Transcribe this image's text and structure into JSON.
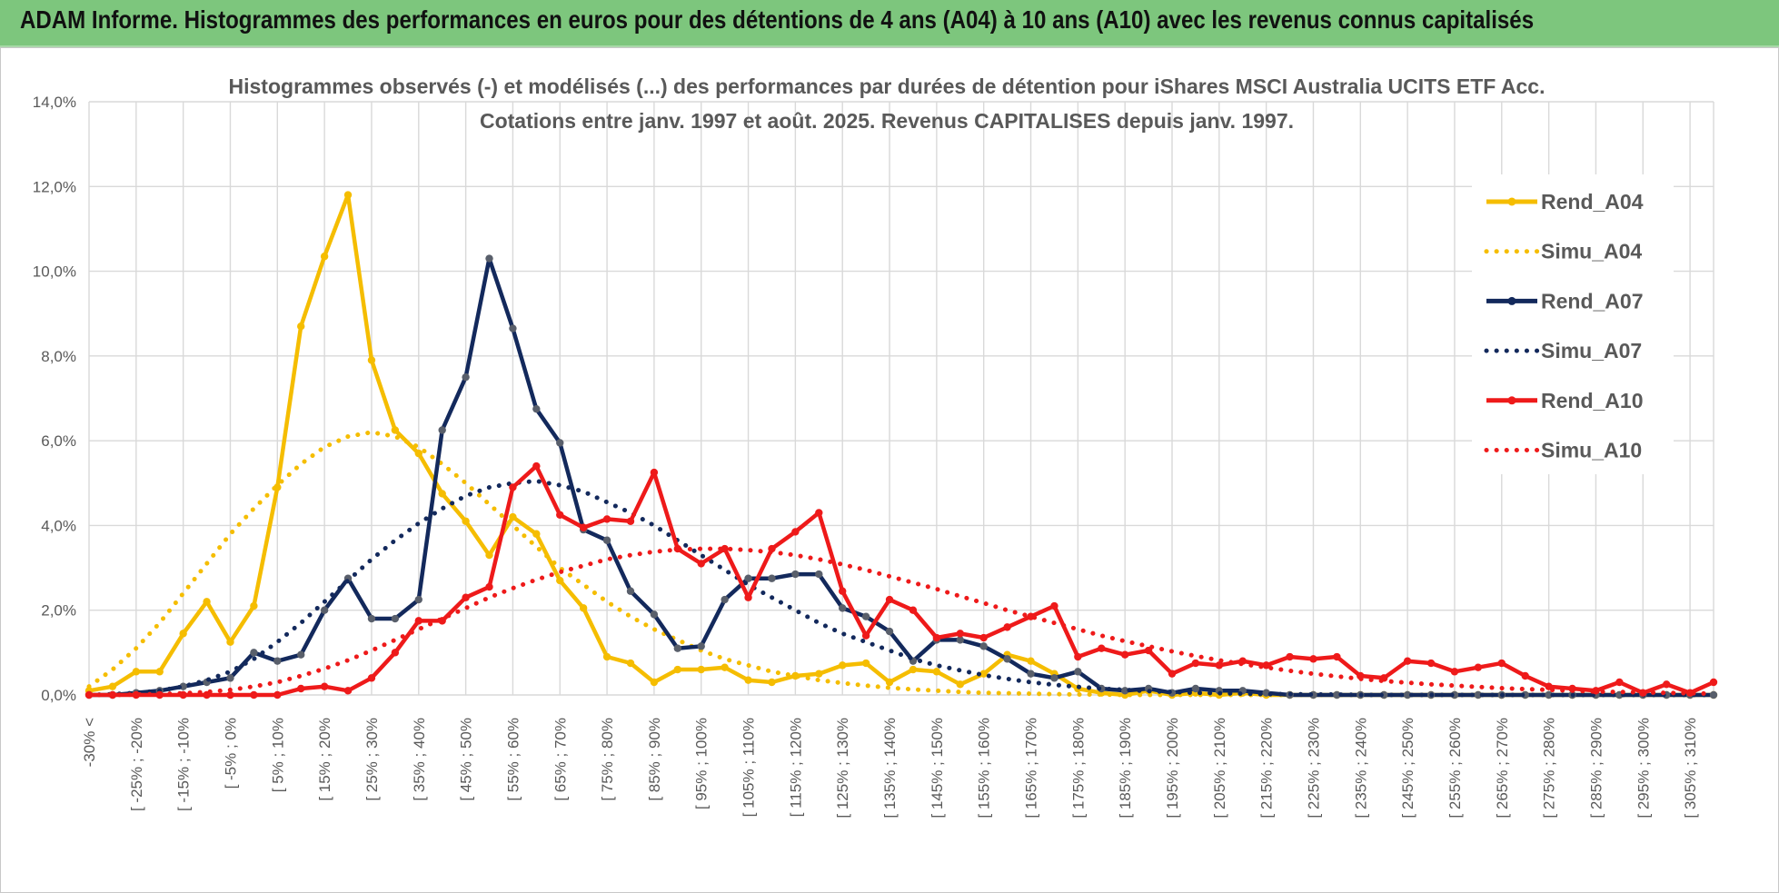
{
  "banner": {
    "title": "ADAM Informe. Histogrammes des performances en euros pour des détentions de 4 ans (A04) à 10 ans (A10) avec les revenus connus capitalisés"
  },
  "colors": {
    "banner_bg": "#7dc67d",
    "A04": "#f5bd00",
    "A07": "#13295c",
    "A07_marker": "#595f6b",
    "A10": "#ee1a1a"
  },
  "chart_data": {
    "type": "line",
    "title": [
      "Histogrammes observés (-) et modélisés (...) des performances par durées de détention pour iShares MSCI Australia UCITS ETF Acc.",
      "Cotations entre janv. 1997 et août. 2025. Revenus CAPITALISES depuis janv. 1997."
    ],
    "xlabel": "",
    "ylabel": "",
    "ylim": [
      0,
      14
    ],
    "y_ticks": [
      "0,0%",
      "2,0%",
      "4,0%",
      "6,0%",
      "8,0%",
      "10,0%",
      "12,0%",
      "14,0%"
    ],
    "y_unit": "percent",
    "grid": true,
    "legend_position": "right",
    "x_tick_labels": [
      "-30% <",
      "[ -25% ; -20%",
      "[ -15% ; -10%",
      "[ -5% ; 0%",
      "[ 5% ; 10%",
      "[ 15% ; 20%",
      "[ 25% ; 30%",
      "[ 35% ; 40%",
      "[ 45% ; 50%",
      "[ 55% ; 60%",
      "[ 65% ; 70%",
      "[ 75% ; 80%",
      "[ 85% ; 90%",
      "[ 95% ; 100%",
      "[ 105% ; 110%",
      "[ 115% ; 120%",
      "[ 125% ; 130%",
      "[ 135% ; 140%",
      "[ 145% ; 150%",
      "[ 155% ; 160%",
      "[ 165% ; 170%",
      "[ 175% ; 180%",
      "[ 185% ; 190%",
      "[ 195% ; 200%",
      "[ 205% ; 210%",
      "[ 215% ; 220%",
      "[ 225% ; 230%",
      "[ 235% ; 240%",
      "[ 245% ; 250%",
      "[ 255% ; 260%",
      "[ 265% ; 270%",
      "[ 275% ; 280%",
      "[ 285% ; 290%",
      "[ 295% ; 300%",
      "[ 305% ; 310%"
    ],
    "series": [
      {
        "name": "Rend_A04",
        "style": "solid",
        "colorKey": "A04",
        "values": [
          0.1,
          0.2,
          0.55,
          0.55,
          1.45,
          2.2,
          1.25,
          2.1,
          4.9,
          8.7,
          10.35,
          11.8,
          7.9,
          6.25,
          5.7,
          4.75,
          4.1,
          3.3,
          4.2,
          3.8,
          2.7,
          2.05,
          0.9,
          0.75,
          0.3,
          0.6,
          0.6,
          0.65,
          0.35,
          0.3,
          0.45,
          0.5,
          0.7,
          0.75,
          0.3,
          0.6,
          0.55,
          0.25,
          0.5,
          0.95,
          0.8,
          0.5,
          0.15,
          0.05,
          0.0,
          0.1,
          0.0,
          0.05,
          0.0,
          0.05,
          0.0,
          0.0,
          0.0,
          0.0,
          0.0,
          0.0,
          0.0,
          0.0,
          0.0,
          0.0,
          0.0,
          0.0,
          0.0,
          0.0,
          0.0,
          0.0,
          0.0,
          0.0,
          0.0,
          0.0
        ]
      },
      {
        "name": "Simu_A04",
        "style": "dotted",
        "colorKey": "A04",
        "values": [
          0.2,
          0.6,
          1.1,
          1.7,
          2.4,
          3.1,
          3.8,
          4.4,
          4.95,
          5.45,
          5.85,
          6.1,
          6.2,
          6.1,
          5.85,
          5.45,
          5.0,
          4.5,
          4.0,
          3.5,
          3.0,
          2.6,
          2.2,
          1.85,
          1.55,
          1.3,
          1.05,
          0.85,
          0.7,
          0.55,
          0.45,
          0.35,
          0.28,
          0.22,
          0.17,
          0.13,
          0.1,
          0.07,
          0.05,
          0.04,
          0.03,
          0.02,
          0.01,
          0.01,
          0.0,
          0.0,
          0.0,
          0.0,
          0.0,
          0.0,
          0.0,
          0.0,
          0.0,
          0.0,
          0.0,
          0.0,
          0.0,
          0.0,
          0.0,
          0.0,
          0.0,
          0.0,
          0.0,
          0.0,
          0.0,
          0.0,
          0.0,
          0.0,
          0.0,
          0.0
        ]
      },
      {
        "name": "Rend_A07",
        "style": "solid",
        "colorKey": "A07",
        "values": [
          0.0,
          0.0,
          0.05,
          0.1,
          0.2,
          0.3,
          0.4,
          1.0,
          0.8,
          0.95,
          2.0,
          2.75,
          1.8,
          1.8,
          2.25,
          6.25,
          7.5,
          10.3,
          8.65,
          6.75,
          5.95,
          3.9,
          3.65,
          2.45,
          1.9,
          1.1,
          1.15,
          2.25,
          2.75,
          2.75,
          2.85,
          2.85,
          2.05,
          1.85,
          1.5,
          0.8,
          1.3,
          1.3,
          1.15,
          0.85,
          0.5,
          0.4,
          0.55,
          0.15,
          0.1,
          0.15,
          0.05,
          0.15,
          0.1,
          0.1,
          0.05,
          0.0,
          0.0,
          0.0,
          0.0,
          0.0,
          0.0,
          0.0,
          0.0,
          0.0,
          0.0,
          0.0,
          0.0,
          0.0,
          0.0,
          0.0,
          0.0,
          0.0,
          0.0,
          0.0
        ]
      },
      {
        "name": "Simu_A07",
        "style": "dotted",
        "colorKey": "A07",
        "values": [
          0.0,
          0.02,
          0.05,
          0.1,
          0.2,
          0.35,
          0.55,
          0.85,
          1.25,
          1.7,
          2.2,
          2.7,
          3.2,
          3.65,
          4.05,
          4.4,
          4.7,
          4.9,
          5.0,
          5.05,
          4.95,
          4.8,
          4.55,
          4.3,
          4.0,
          3.65,
          3.3,
          2.95,
          2.6,
          2.3,
          2.0,
          1.7,
          1.45,
          1.25,
          1.05,
          0.85,
          0.7,
          0.58,
          0.47,
          0.38,
          0.3,
          0.24,
          0.19,
          0.15,
          0.12,
          0.09,
          0.07,
          0.05,
          0.04,
          0.03,
          0.02,
          0.02,
          0.01,
          0.01,
          0.0,
          0.0,
          0.0,
          0.0,
          0.0,
          0.0,
          0.0,
          0.0,
          0.0,
          0.0,
          0.0,
          0.0,
          0.0,
          0.0,
          0.0,
          0.0
        ]
      },
      {
        "name": "Rend_A10",
        "style": "solid",
        "colorKey": "A10",
        "values": [
          0.0,
          0.0,
          0.0,
          0.0,
          0.0,
          0.0,
          0.0,
          0.0,
          0.0,
          0.15,
          0.2,
          0.1,
          0.4,
          1.0,
          1.75,
          1.75,
          2.3,
          2.55,
          4.9,
          5.4,
          4.25,
          3.95,
          4.15,
          4.1,
          5.25,
          3.45,
          3.1,
          3.45,
          2.3,
          3.45,
          3.85,
          4.3,
          2.45,
          1.4,
          2.25,
          2.0,
          1.35,
          1.45,
          1.35,
          1.6,
          1.85,
          2.1,
          0.9,
          1.1,
          0.95,
          1.05,
          0.5,
          0.75,
          0.7,
          0.8,
          0.7,
          0.9,
          0.85,
          0.9,
          0.45,
          0.4,
          0.8,
          0.75,
          0.55,
          0.65,
          0.75,
          0.45,
          0.2,
          0.15,
          0.1,
          0.3,
          0.05,
          0.25,
          0.05,
          0.3
        ]
      },
      {
        "name": "Simu_A10",
        "style": "dotted",
        "colorKey": "A10",
        "values": [
          0.0,
          0.0,
          0.01,
          0.02,
          0.04,
          0.07,
          0.12,
          0.2,
          0.3,
          0.45,
          0.62,
          0.82,
          1.05,
          1.3,
          1.55,
          1.8,
          2.05,
          2.3,
          2.52,
          2.72,
          2.9,
          3.05,
          3.2,
          3.3,
          3.38,
          3.43,
          3.45,
          3.45,
          3.42,
          3.37,
          3.3,
          3.2,
          3.08,
          2.95,
          2.8,
          2.65,
          2.5,
          2.33,
          2.17,
          2.0,
          1.85,
          1.7,
          1.55,
          1.4,
          1.27,
          1.15,
          1.03,
          0.92,
          0.82,
          0.73,
          0.65,
          0.57,
          0.5,
          0.44,
          0.38,
          0.33,
          0.29,
          0.25,
          0.22,
          0.19,
          0.16,
          0.14,
          0.12,
          0.1,
          0.08,
          0.07,
          0.06,
          0.05,
          0.04,
          0.03
        ]
      }
    ]
  }
}
